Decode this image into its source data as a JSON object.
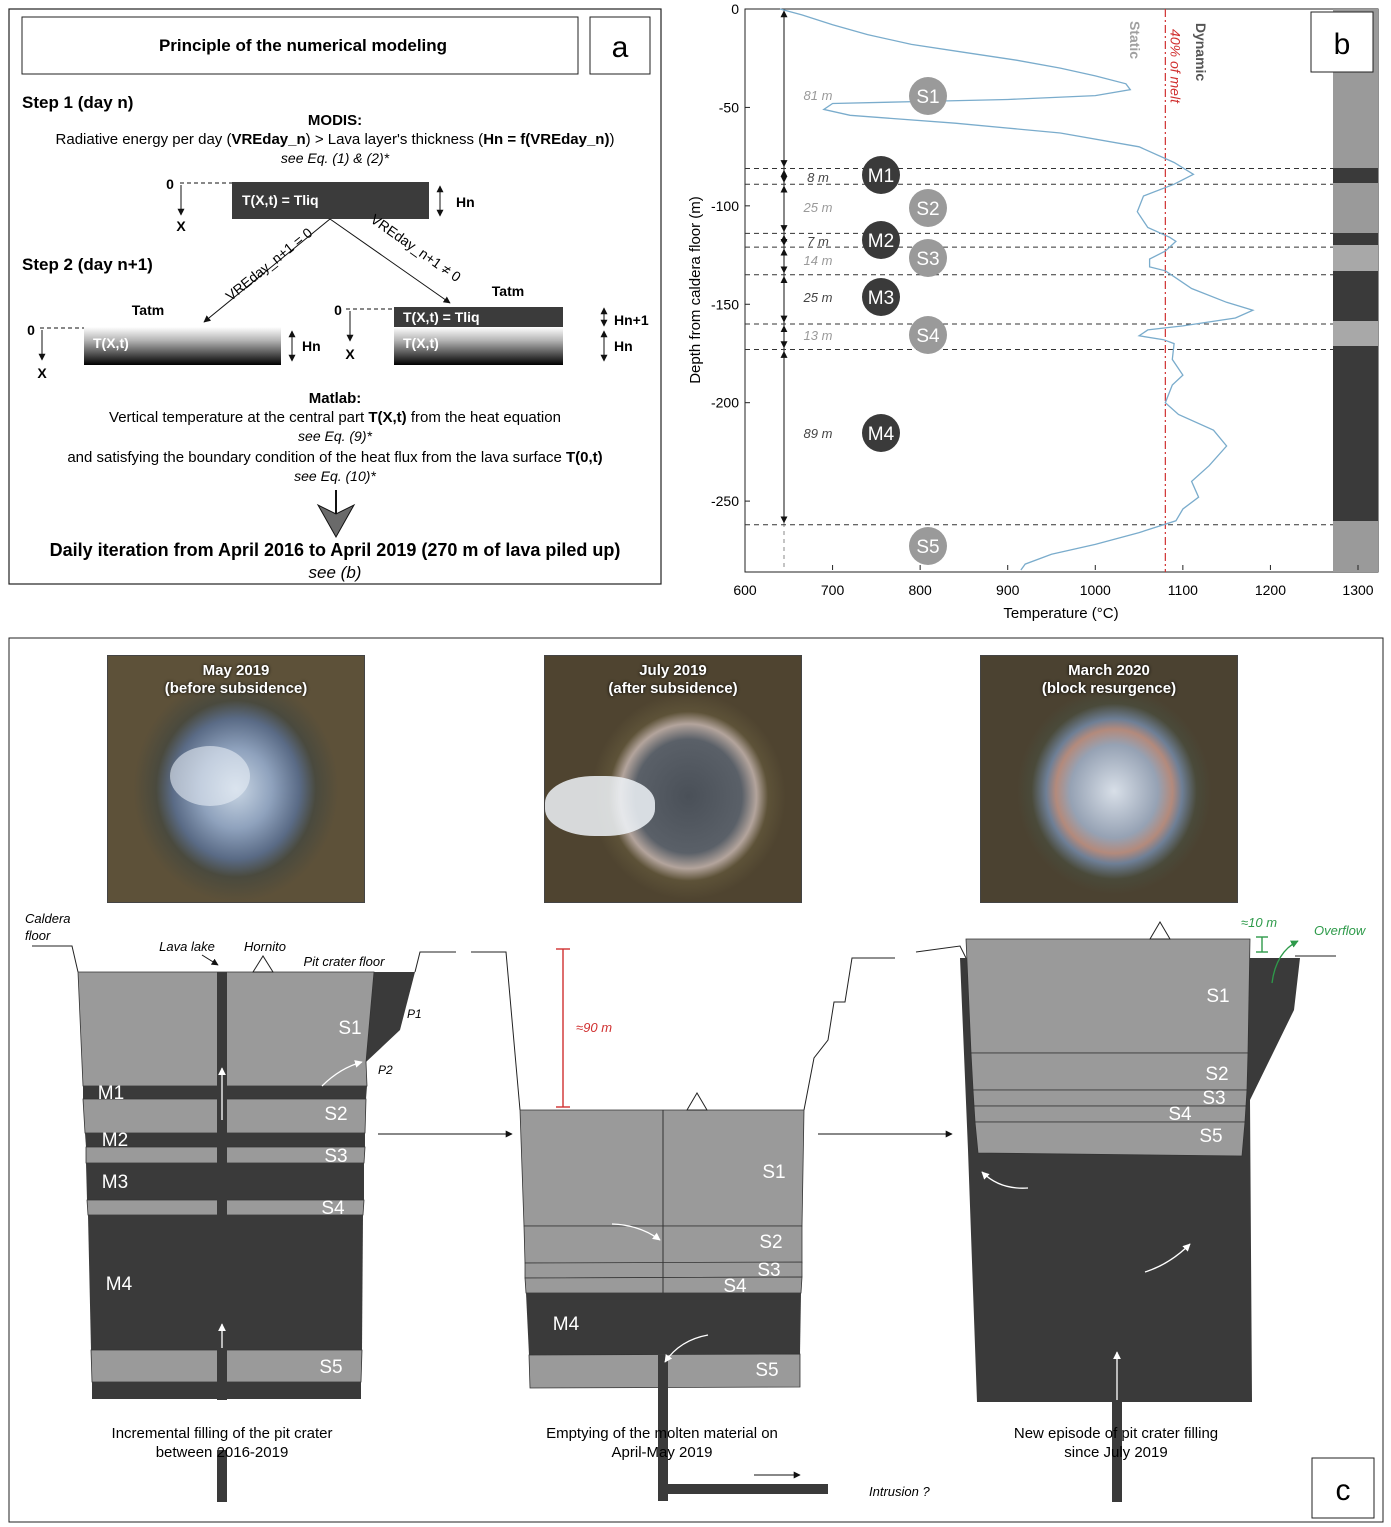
{
  "panel_a": {
    "letter": "a",
    "title": "Principle of the numerical modeling",
    "step1": "Step 1 (day n)",
    "modis_head": "MODIS:",
    "modis_line_a": "Radiative energy per day (",
    "modis_b1": "VREday_n",
    "modis_line_b": ") > Lava layer's thickness (",
    "modis_b2": "Hn = f(VREday_n)",
    "modis_line_c": ")",
    "see_eq12": "see Eq. (1) & (2)*",
    "zero": "0",
    "x": "X",
    "layer_liq": "T(X,t) = Tliq",
    "hn": "Hn",
    "hn1": "Hn+1",
    "step2": "Step 2 (day n+1)",
    "vre_zero": "VREday_n+1 = 0",
    "vre_nonzero": "VREday_n+1 ≠ 0",
    "tatm": "Tatm",
    "layer_txt": "T(X,t)",
    "matlab_head": "Matlab:",
    "matlab_line1_a": "Vertical temperature at the central part ",
    "matlab_line1_b": "T(X,t)",
    "matlab_line1_c": " from the heat equation",
    "see_eq9": "see Eq. (9)*",
    "matlab_line2_a": "and satisfying the boundary condition of the heat flux from the lava surface ",
    "matlab_line2_b": "T(0,t)",
    "see_eq10": "see Eq. (10)*",
    "daily": "Daily iteration from April 2016 to April 2019 (270 m of lava piled up)",
    "see_b": "see (b)"
  },
  "panel_b": {
    "letter": "b",
    "static": "Static",
    "dynamic": "Dynamic",
    "melt": "40% of melt",
    "layer_labels": [
      {
        "name": "S1",
        "thickness": "81 m"
      },
      {
        "name": "M1",
        "thickness": "8 m"
      },
      {
        "name": "S2",
        "thickness": "25 m"
      },
      {
        "name": "M2",
        "thickness": "7 m"
      },
      {
        "name": "S3",
        "thickness": "14 m"
      },
      {
        "name": "M3",
        "thickness": "25 m"
      },
      {
        "name": "S4",
        "thickness": "13 m"
      },
      {
        "name": "M4",
        "thickness": "89 m"
      },
      {
        "name": "S5",
        "thickness": ""
      }
    ]
  },
  "chart_data": {
    "type": "line",
    "xlabel": "Temperature (°C)",
    "ylabel": "Depth from caldera floor (m)",
    "xlim": [
      600,
      1300
    ],
    "ylim": [
      -285,
      0
    ],
    "x_ticks": [
      "600",
      "700",
      "800",
      "900",
      "1000",
      "1100",
      "1200",
      "1300"
    ],
    "y_ticks": [
      "0",
      "-50",
      "-100",
      "-150",
      "-200",
      "-250"
    ],
    "melt_threshold_temperature": 1080,
    "layer_boundaries_depth": [
      -81,
      -89,
      -114,
      -121,
      -135,
      -160,
      -173,
      -262
    ],
    "series": [
      {
        "x": [
          640,
          665,
          700,
          740,
          790,
          850,
          910,
          960,
          1000,
          1035,
          1040,
          1000,
          900,
          800,
          700,
          690,
          720,
          840,
          960,
          1050,
          1090,
          1112,
          1090,
          1055,
          1048,
          1060,
          1085,
          1092,
          1080,
          1062,
          1062,
          1080,
          1090,
          1110,
          1150,
          1180,
          1160,
          1100,
          1060,
          1050,
          1078,
          1090,
          1088,
          1100,
          1088,
          1080,
          1095,
          1135,
          1150,
          1130,
          1110,
          1118,
          1100,
          1092,
          1050,
          1000,
          950,
          920,
          915
        ],
        "y": [
          0,
          -3,
          -8,
          -13,
          -18,
          -22,
          -26,
          -30,
          -34,
          -38,
          -41,
          -44,
          -46,
          -47,
          -48,
          -51,
          -54,
          -58,
          -63,
          -70,
          -78,
          -84,
          -89,
          -95,
          -103,
          -111,
          -116,
          -118,
          -123,
          -127,
          -131,
          -133,
          -136,
          -142,
          -149,
          -153,
          -157,
          -161,
          -163,
          -166,
          -168,
          -170,
          -178,
          -186,
          -191,
          -200,
          -206,
          -214,
          -222,
          -232,
          -240,
          -248,
          -254,
          -260,
          -266,
          -272,
          -277,
          -282,
          -285
        ]
      }
    ]
  },
  "panel_c": {
    "letter": "c",
    "photos": [
      {
        "title": "May 2019",
        "subtitle": "(before subsidence)"
      },
      {
        "title": "July 2019",
        "subtitle": "(after subsidence)"
      },
      {
        "title": "March 2020",
        "subtitle": "(block resurgence)"
      }
    ],
    "caldera_floor": "Caldera floor",
    "lava_lake": "Lava lake",
    "hornito": "Hornito",
    "pit_crater_floor": "Pit crater floor",
    "p1": "P1",
    "p2": "P2",
    "drop": "≈90 m",
    "rise": "≈10 m",
    "overflow": "Overflow",
    "intrusion": "Intrusion ?",
    "left_layers": [
      "S1",
      "M1",
      "S2",
      "M2",
      "S3",
      "M3",
      "S4",
      "M4",
      "S5"
    ],
    "mid_layers": [
      "S1",
      "S2",
      "S3",
      "S4",
      "M4",
      "S5"
    ],
    "right_layers": [
      "S1",
      "S2",
      "S3",
      "S4",
      "S5"
    ],
    "caption_left_1": "Incremental filling of the pit crater",
    "caption_left_2": "between 2016-2019",
    "caption_mid_1": "Emptying of the molten material on",
    "caption_mid_2": "April-May 2019",
    "caption_right_1": "New episode of pit crater filling",
    "caption_right_2": "since July 2019"
  },
  "colors": {
    "static_gray": "#9a9a9a",
    "molten_dark": "#3a3a3a",
    "curve_blue": "#7aaccc",
    "melt_red": "#d03030",
    "overflow_green": "#2e9a4a"
  }
}
